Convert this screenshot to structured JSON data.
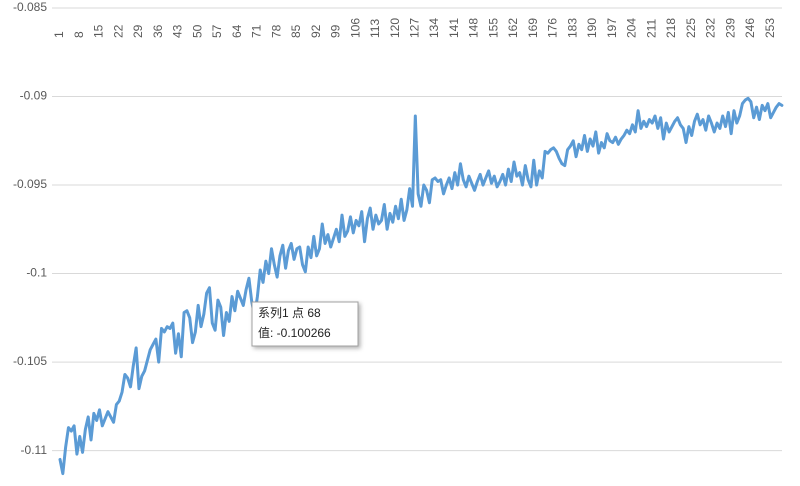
{
  "chart_data": {
    "type": "line",
    "categories": [
      "1",
      null,
      null,
      null,
      null,
      null,
      null,
      "8",
      null,
      null,
      null,
      null,
      null,
      null,
      "15",
      null,
      null,
      null,
      null,
      null,
      null,
      "22",
      null,
      null,
      null,
      null,
      null,
      null,
      "29",
      null,
      null,
      null,
      null,
      null,
      null,
      "36",
      null,
      null,
      null,
      null,
      null,
      null,
      "43",
      null,
      null,
      null,
      null,
      null,
      null,
      "50",
      null,
      null,
      null,
      null,
      null,
      null,
      "57",
      null,
      null,
      null,
      null,
      null,
      null,
      "64",
      null,
      null,
      null,
      null,
      null,
      null,
      "71",
      null,
      null,
      null,
      null,
      null,
      null,
      "78",
      null,
      null,
      null,
      null,
      null,
      null,
      "85",
      null,
      null,
      null,
      null,
      null,
      null,
      "92",
      null,
      null,
      null,
      null,
      null,
      null,
      "99",
      null,
      null,
      null,
      null,
      null,
      null,
      "106",
      null,
      null,
      null,
      null,
      null,
      null,
      "113",
      null,
      null,
      null,
      null,
      null,
      null,
      "120",
      null,
      null,
      null,
      null,
      null,
      null,
      "127",
      null,
      null,
      null,
      null,
      null,
      null,
      "134",
      null,
      null,
      null,
      null,
      null,
      null,
      "141",
      null,
      null,
      null,
      null,
      null,
      null,
      "148",
      null,
      null,
      null,
      null,
      null,
      null,
      "155",
      null,
      null,
      null,
      null,
      null,
      null,
      "162",
      null,
      null,
      null,
      null,
      null,
      null,
      "169",
      null,
      null,
      null,
      null,
      null,
      null,
      "176",
      null,
      null,
      null,
      null,
      null,
      null,
      "183",
      null,
      null,
      null,
      null,
      null,
      null,
      "190",
      null,
      null,
      null,
      null,
      null,
      null,
      "197",
      null,
      null,
      null,
      null,
      null,
      null,
      "204",
      null,
      null,
      null,
      null,
      null,
      null,
      "211",
      null,
      null,
      null,
      null,
      null,
      null,
      "218",
      null,
      null,
      null,
      null,
      null,
      null,
      "225",
      null,
      null,
      null,
      null,
      null,
      null,
      "232",
      null,
      null,
      null,
      null,
      null,
      null,
      "239",
      null,
      null,
      null,
      null,
      null,
      null,
      "246",
      null,
      null,
      null,
      null,
      null,
      null,
      "253",
      null,
      null,
      null,
      null
    ],
    "series": [
      {
        "color": "#5b9bd5",
        "values": [
          -0.1105,
          -0.1113,
          -0.1098,
          -0.1087,
          -0.1089,
          -0.1086,
          -0.1102,
          -0.1092,
          -0.1101,
          -0.1088,
          -0.1081,
          -0.1094,
          -0.1079,
          -0.1083,
          -0.1077,
          -0.1086,
          -0.1082,
          -0.1078,
          -0.1081,
          -0.1084,
          -0.1074,
          -0.1072,
          -0.1067,
          -0.1057,
          -0.1059,
          -0.1064,
          -0.1052,
          -0.1042,
          -0.1065,
          -0.1058,
          -0.1055,
          -0.1049,
          -0.1043,
          -0.104,
          -0.1037,
          -0.105,
          -0.1031,
          -0.1033,
          -0.103,
          -0.1031,
          -0.1028,
          -0.1045,
          -0.1034,
          -0.1047,
          -0.1022,
          -0.1021,
          -0.1025,
          -0.1039,
          -0.1033,
          -0.1018,
          -0.103,
          -0.1023,
          -0.1011,
          -0.1008,
          -0.1028,
          -0.1032,
          -0.1015,
          -0.1019,
          -0.1035,
          -0.1022,
          -0.1027,
          -0.1013,
          -0.1021,
          -0.101,
          -0.1014,
          -0.1018,
          -0.1009,
          -0.100266,
          -0.1016,
          -0.1024,
          -0.1013,
          -0.0998,
          -0.1005,
          -0.0993,
          -0.1,
          -0.0986,
          -0.0995,
          -0.1002,
          -0.099,
          -0.0984,
          -0.0997,
          -0.0987,
          -0.0983,
          -0.0992,
          -0.0986,
          -0.0985,
          -0.0995,
          -0.0999,
          -0.0985,
          -0.0991,
          -0.0979,
          -0.099,
          -0.0986,
          -0.0972,
          -0.0983,
          -0.0978,
          -0.0985,
          -0.098,
          -0.0975,
          -0.0982,
          -0.0967,
          -0.0979,
          -0.0976,
          -0.0968,
          -0.0977,
          -0.097,
          -0.0973,
          -0.0965,
          -0.0982,
          -0.0969,
          -0.0963,
          -0.0975,
          -0.0967,
          -0.0972,
          -0.097,
          -0.0961,
          -0.0975,
          -0.0966,
          -0.0971,
          -0.0962,
          -0.0969,
          -0.0958,
          -0.097,
          -0.0964,
          -0.0952,
          -0.0962,
          -0.0911,
          -0.0955,
          -0.0962,
          -0.095,
          -0.0953,
          -0.096,
          -0.0947,
          -0.0946,
          -0.0948,
          -0.0947,
          -0.0955,
          -0.095,
          -0.0946,
          -0.0952,
          -0.0943,
          -0.095,
          -0.0938,
          -0.0947,
          -0.0951,
          -0.0945,
          -0.0949,
          -0.0953,
          -0.0948,
          -0.0944,
          -0.095,
          -0.0946,
          -0.0942,
          -0.0949,
          -0.0945,
          -0.0951,
          -0.0948,
          -0.0944,
          -0.095,
          -0.0941,
          -0.0948,
          -0.0937,
          -0.0945,
          -0.0943,
          -0.095,
          -0.0939,
          -0.0947,
          -0.0951,
          -0.0936,
          -0.095,
          -0.0942,
          -0.0946,
          -0.0931,
          -0.0932,
          -0.093,
          -0.0929,
          -0.0931,
          -0.0935,
          -0.0938,
          -0.0939,
          -0.093,
          -0.0928,
          -0.0925,
          -0.0934,
          -0.0927,
          -0.093,
          -0.0922,
          -0.0931,
          -0.0924,
          -0.0928,
          -0.092,
          -0.0932,
          -0.0926,
          -0.0929,
          -0.0921,
          -0.0925,
          -0.0926,
          -0.0923,
          -0.0927,
          -0.0924,
          -0.0922,
          -0.0919,
          -0.0921,
          -0.0916,
          -0.092,
          -0.0908,
          -0.0918,
          -0.0914,
          -0.0917,
          -0.0913,
          -0.0915,
          -0.0911,
          -0.0918,
          -0.0912,
          -0.0924,
          -0.0915,
          -0.092,
          -0.0917,
          -0.0914,
          -0.0912,
          -0.0916,
          -0.0918,
          -0.0926,
          -0.0917,
          -0.0922,
          -0.0914,
          -0.091,
          -0.0916,
          -0.0913,
          -0.0919,
          -0.0911,
          -0.0915,
          -0.092,
          -0.0915,
          -0.0918,
          -0.0911,
          -0.0917,
          -0.0909,
          -0.0921,
          -0.0908,
          -0.0915,
          -0.0911,
          -0.0904,
          -0.0902,
          -0.0901,
          -0.0903,
          -0.0912,
          -0.0906,
          -0.0913,
          -0.0905,
          -0.0908,
          -0.0904,
          -0.0912,
          -0.0909,
          -0.0906,
          -0.0904,
          -0.0905
        ]
      }
    ],
    "ylim": [
      -0.112,
      -0.085
    ],
    "yticks": [
      -0.085,
      -0.09,
      -0.095,
      -0.1,
      -0.105,
      -0.11
    ],
    "grid": true,
    "tooltip": {
      "line1": "系列1 点 68",
      "line2": "值: -0.100266"
    }
  }
}
